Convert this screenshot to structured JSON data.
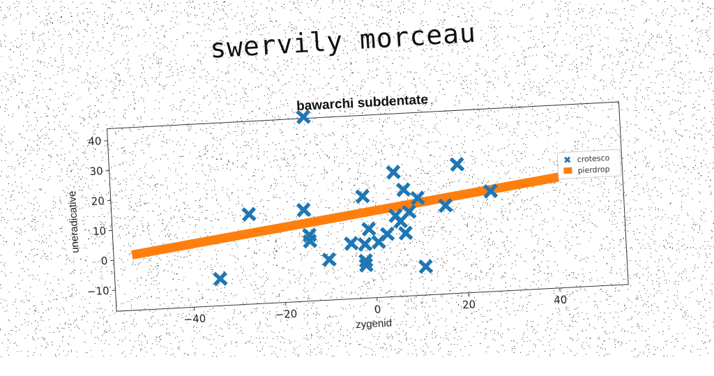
{
  "suptitle": "swervily morceau",
  "chart_data": {
    "type": "scatter",
    "title": "bawarchi subdentate",
    "xlabel": "zygenid",
    "ylabel": "uneradicative",
    "xlim": [
      -57,
      55
    ],
    "ylim": [
      -17,
      44
    ],
    "xticks": [
      -40,
      -20,
      0,
      20,
      40
    ],
    "yticks": [
      -10,
      0,
      10,
      20,
      30,
      40
    ],
    "xtick_labels": [
      "−40",
      "−20",
      "0",
      "20",
      "40"
    ],
    "ytick_labels": [
      "−10",
      "0",
      "10",
      "20",
      "30",
      "40"
    ],
    "grid": false,
    "legend_position": "right",
    "series": [
      {
        "name": "crotesco",
        "color": "#1f77b4",
        "marker": "x",
        "points": [
          [
            -14,
            44.5
          ],
          [
            -34,
            -8
          ],
          [
            -27,
            13
          ],
          [
            -15,
            13.5
          ],
          [
            -14,
            5
          ],
          [
            -14,
            3
          ],
          [
            -10,
            -3.5
          ],
          [
            -5,
            1.5
          ],
          [
            -2,
            17
          ],
          [
            -2,
            1
          ],
          [
            -2,
            -4.5
          ],
          [
            -2,
            -6
          ],
          [
            -1,
            6
          ],
          [
            1,
            1.5
          ],
          [
            3,
            4
          ],
          [
            5,
            24.5
          ],
          [
            5,
            10
          ],
          [
            6,
            8
          ],
          [
            7,
            18.5
          ],
          [
            7,
            4
          ],
          [
            8,
            11
          ],
          [
            10,
            15.5
          ],
          [
            11,
            -7.5
          ],
          [
            16,
            12.5
          ],
          [
            19,
            26
          ],
          [
            26,
            16.5
          ]
        ]
      },
      {
        "name": "pierdrop",
        "color": "#ff7f0e",
        "marker": "line",
        "line": [
          [
            -53,
            1.5
          ],
          [
            41,
            20
          ]
        ]
      }
    ]
  }
}
